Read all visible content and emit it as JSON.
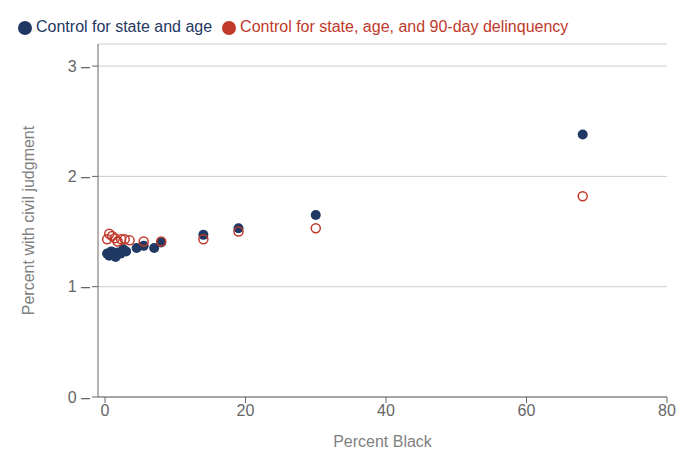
{
  "chart_data": {
    "type": "scatter",
    "xlabel": "Percent Black",
    "ylabel": "Percent with civil judgment",
    "xlim": [
      -1,
      80
    ],
    "ylim": [
      0,
      3.2
    ],
    "xticks": [
      0,
      20,
      40,
      60,
      80
    ],
    "yticks": [
      {
        "value": 0,
        "label": "0 –"
      },
      {
        "value": 1,
        "label": "1 –"
      },
      {
        "value": 2,
        "label": "2 –"
      },
      {
        "value": 3,
        "label": "3 –"
      }
    ],
    "grid": "y",
    "legend": "upper left",
    "series": [
      {
        "name": "Control for state and age",
        "color": "#1f3864",
        "marker": "circle",
        "x": [
          0.3,
          0.6,
          0.9,
          1.2,
          1.5,
          1.8,
          2.2,
          2.6,
          3.0,
          4.5,
          5.5,
          7.0,
          8.0,
          14.0,
          19.0,
          30.0,
          68.0
        ],
        "values": [
          1.3,
          1.28,
          1.32,
          1.29,
          1.27,
          1.31,
          1.3,
          1.34,
          1.32,
          1.35,
          1.37,
          1.35,
          1.4,
          1.47,
          1.53,
          1.65,
          2.38
        ]
      },
      {
        "name": "Control for state, age, and 90-day delinquency",
        "color": "#c0392b",
        "marker": "open_circle",
        "x": [
          0.3,
          0.6,
          1.0,
          1.4,
          1.8,
          2.3,
          2.8,
          3.5,
          5.5,
          8.0,
          14.0,
          19.0,
          30.0,
          68.0
        ],
        "values": [
          1.43,
          1.48,
          1.46,
          1.44,
          1.41,
          1.43,
          1.43,
          1.42,
          1.41,
          1.41,
          1.43,
          1.5,
          1.53,
          1.82
        ]
      }
    ]
  }
}
